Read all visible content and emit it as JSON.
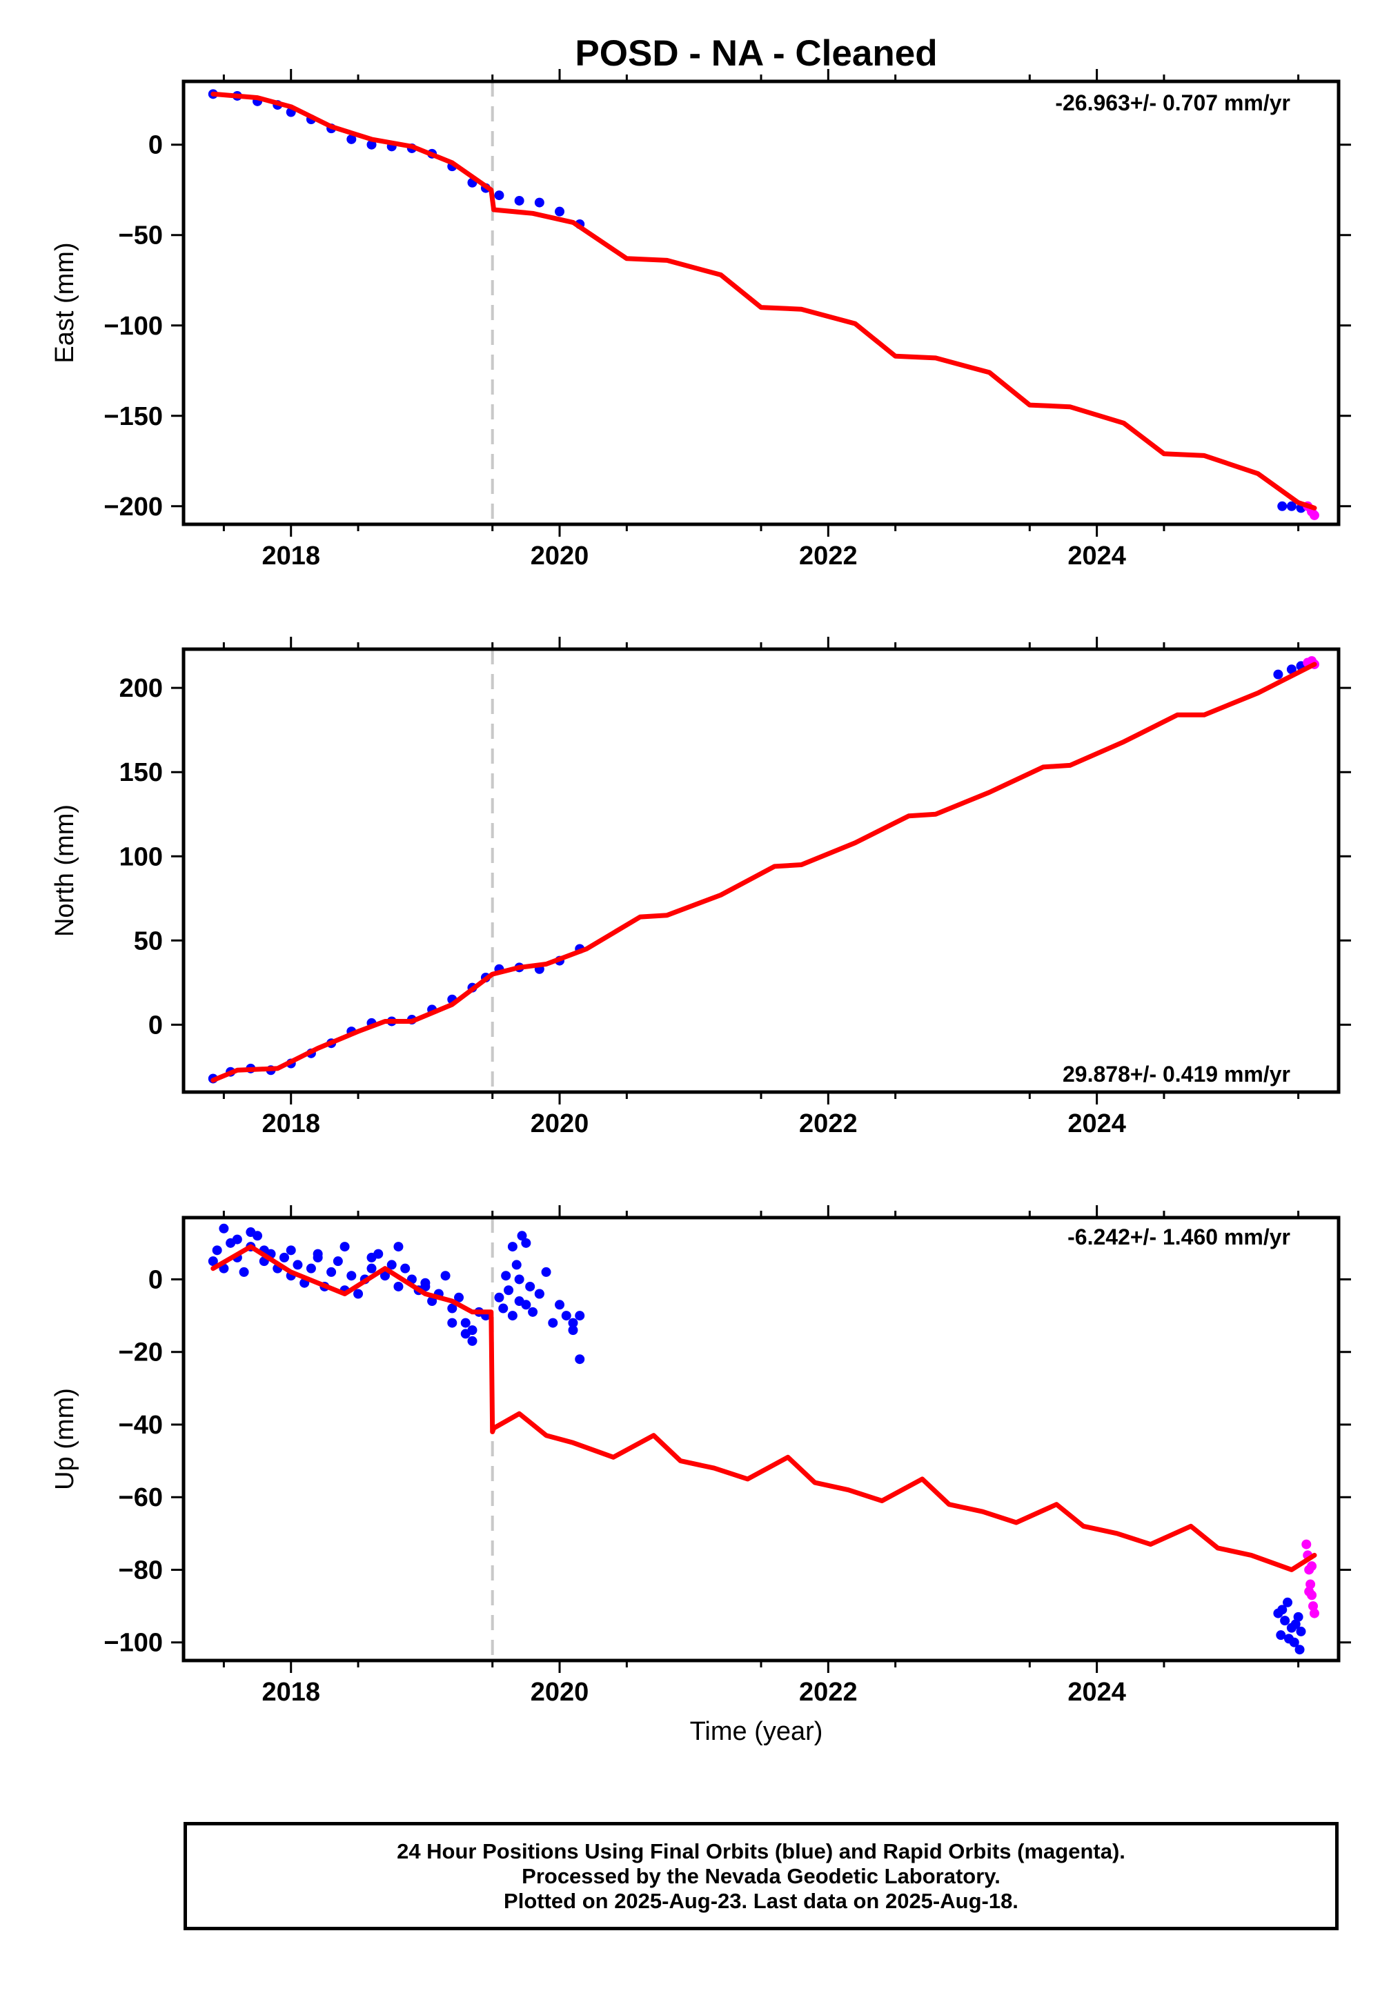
{
  "title": "POSD  - NA - Cleaned",
  "xlabel": "Time (year)",
  "x_tick_labels": [
    "2018",
    "2020",
    "2022",
    "2024"
  ],
  "colors": {
    "final_orbits": "#0000ff",
    "rapid_orbits": "#ff00ff",
    "model": "#ff0000",
    "equipment_change": "#c8c8c8"
  },
  "footer": {
    "line1": "24 Hour Positions Using Final Orbits (blue) and Rapid Orbits (magenta).",
    "line2": "Processed by the Nevada Geodetic Laboratory.",
    "line3": "Plotted on 2025-Aug-23. Last data on 2025-Aug-18."
  },
  "chart_data": [
    {
      "type": "scatter",
      "ylabel": "East (mm)",
      "rate_label": "-26.963+/- 0.707 mm/yr",
      "xlim": [
        2017.2,
        2025.8
      ],
      "ylim": [
        -210,
        35
      ],
      "y_ticks": [
        0,
        -50,
        -100,
        -150,
        -200
      ],
      "y_tick_labels": [
        "0",
        "−50",
        "−100",
        "−150",
        "−200"
      ],
      "offset_year": 2019.5,
      "model": {
        "x": [
          2017.42,
          2017.75,
          2018.0,
          2018.3,
          2018.6,
          2018.9,
          2019.2,
          2019.49,
          2019.51,
          2019.8,
          2020.1,
          2020.5,
          2020.8,
          2021.2,
          2021.5,
          2021.8,
          2022.2,
          2022.5,
          2022.8,
          2023.2,
          2023.5,
          2023.8,
          2024.2,
          2024.5,
          2024.8,
          2025.2,
          2025.5,
          2025.62
        ],
        "y": [
          28,
          26,
          21,
          10,
          3,
          -1,
          -10,
          -25,
          -36,
          -38,
          -43,
          -63,
          -64,
          -72,
          -90,
          -91,
          -99,
          -117,
          -118,
          -126,
          -144,
          -145,
          -154,
          -171,
          -172,
          -182,
          -198,
          -201
        ]
      },
      "series": [
        {
          "name": "Final Orbits",
          "color": "#0000ff",
          "x": [
            2017.42,
            2017.6,
            2017.75,
            2017.9,
            2018.0,
            2018.15,
            2018.3,
            2018.45,
            2018.6,
            2018.75,
            2018.9,
            2019.05,
            2019.2,
            2019.35,
            2019.45,
            2019.55,
            2019.7,
            2019.85,
            2020.0,
            2020.15,
            2025.38,
            2025.45,
            2025.52
          ],
          "y": [
            28,
            27,
            24,
            22,
            18,
            14,
            9,
            3,
            0,
            -1,
            -2,
            -5,
            -12,
            -21,
            -24,
            -28,
            -31,
            -32,
            -37,
            -44,
            -200,
            -200,
            -201
          ]
        },
        {
          "name": "Rapid Orbits",
          "color": "#ff00ff",
          "x": [
            2025.57,
            2025.6,
            2025.62
          ],
          "y": [
            -200,
            -203,
            -205
          ]
        }
      ]
    },
    {
      "type": "scatter",
      "ylabel": "North (mm)",
      "rate_label": "29.878+/- 0.419 mm/yr",
      "xlim": [
        2017.2,
        2025.8
      ],
      "ylim": [
        -40,
        223
      ],
      "y_ticks": [
        0,
        50,
        100,
        150,
        200
      ],
      "y_tick_labels": [
        "0",
        "50",
        "100",
        "150",
        "200"
      ],
      "offset_year": 2019.5,
      "model": {
        "x": [
          2017.42,
          2017.6,
          2017.9,
          2018.2,
          2018.5,
          2018.7,
          2018.9,
          2019.2,
          2019.5,
          2019.7,
          2019.9,
          2020.2,
          2020.6,
          2020.8,
          2021.2,
          2021.6,
          2021.8,
          2022.2,
          2022.6,
          2022.8,
          2023.2,
          2023.6,
          2023.8,
          2024.2,
          2024.6,
          2024.8,
          2025.2,
          2025.62
        ],
        "y": [
          -33,
          -27,
          -26,
          -14,
          -4,
          2,
          2,
          12,
          30,
          34,
          36,
          45,
          64,
          65,
          77,
          94,
          95,
          108,
          124,
          125,
          138,
          153,
          154,
          168,
          184,
          184,
          197,
          214
        ]
      },
      "series": [
        {
          "name": "Final Orbits",
          "color": "#0000ff",
          "x": [
            2017.42,
            2017.55,
            2017.7,
            2017.85,
            2018.0,
            2018.15,
            2018.3,
            2018.45,
            2018.6,
            2018.75,
            2018.9,
            2019.05,
            2019.2,
            2019.35,
            2019.45,
            2019.55,
            2019.7,
            2019.85,
            2020.0,
            2020.15,
            2025.35,
            2025.45,
            2025.52
          ],
          "y": [
            -32,
            -28,
            -26,
            -27,
            -23,
            -17,
            -11,
            -4,
            1,
            2,
            3,
            9,
            15,
            22,
            28,
            33,
            34,
            33,
            38,
            45,
            208,
            211,
            213
          ]
        },
        {
          "name": "Rapid Orbits",
          "color": "#ff00ff",
          "x": [
            2025.57,
            2025.6,
            2025.62
          ],
          "y": [
            215,
            216,
            214
          ]
        }
      ]
    },
    {
      "type": "scatter",
      "ylabel": "Up (mm)",
      "rate_label": "-6.242+/- 1.460 mm/yr",
      "xlim": [
        2017.2,
        2025.8
      ],
      "ylim": [
        -105,
        17
      ],
      "y_ticks": [
        0,
        -20,
        -40,
        -60,
        -80,
        -100
      ],
      "y_tick_labels": [
        "0",
        "−20",
        "−40",
        "−60",
        "−80",
        "−100"
      ],
      "offset_year": 2019.5,
      "model": {
        "x": [
          2017.42,
          2017.7,
          2018.0,
          2018.2,
          2018.4,
          2018.7,
          2019.0,
          2019.2,
          2019.35,
          2019.49,
          2019.5,
          2019.51,
          2019.7,
          2019.9,
          2020.1,
          2020.4,
          2020.7,
          2020.9,
          2021.15,
          2021.4,
          2021.7,
          2021.9,
          2022.15,
          2022.4,
          2022.7,
          2022.9,
          2023.15,
          2023.4,
          2023.7,
          2023.9,
          2024.15,
          2024.4,
          2024.7,
          2024.9,
          2025.15,
          2025.45,
          2025.62
        ],
        "y": [
          3,
          9,
          2,
          -1,
          -4,
          3,
          -4,
          -6,
          -9,
          -9,
          -42,
          -41,
          -37,
          -43,
          -45,
          -49,
          -43,
          -50,
          -52,
          -55,
          -49,
          -56,
          -58,
          -61,
          -55,
          -62,
          -64,
          -67,
          -62,
          -68,
          -70,
          -73,
          -68,
          -74,
          -76,
          -80,
          -76
        ]
      },
      "series": [
        {
          "name": "Final Orbits",
          "color": "#0000ff",
          "x": [
            2017.42,
            2017.45,
            2017.5,
            2017.55,
            2017.6,
            2017.65,
            2017.7,
            2017.75,
            2017.8,
            2017.85,
            2017.9,
            2017.95,
            2018.0,
            2018.05,
            2018.1,
            2018.15,
            2018.2,
            2018.25,
            2018.3,
            2018.35,
            2018.4,
            2018.45,
            2018.5,
            2018.55,
            2018.6,
            2018.65,
            2018.7,
            2018.75,
            2018.8,
            2018.85,
            2018.9,
            2018.95,
            2019.0,
            2019.05,
            2019.1,
            2019.15,
            2019.2,
            2019.25,
            2019.3,
            2019.35,
            2019.4,
            2019.45,
            2019.55,
            2019.58,
            2019.6,
            2019.62,
            2019.65,
            2019.68,
            2019.7,
            2019.72,
            2019.75,
            2019.78,
            2019.8,
            2019.85,
            2019.9,
            2019.95,
            2020.0,
            2020.05,
            2020.1,
            2020.15,
            2017.5,
            2017.6,
            2017.7,
            2017.8,
            2018.0,
            2018.2,
            2018.4,
            2018.6,
            2018.8,
            2019.0,
            2019.2,
            2019.3,
            2019.35,
            2019.65,
            2019.7,
            2019.75,
            2019.85,
            2020.1,
            2020.15,
            2025.35,
            2025.37,
            2025.4,
            2025.42,
            2025.45,
            2025.47,
            2025.5,
            2025.52,
            2025.38,
            2025.43,
            2025.48,
            2025.51
          ],
          "y": [
            5,
            8,
            3,
            10,
            6,
            2,
            9,
            12,
            5,
            7,
            3,
            6,
            1,
            4,
            -1,
            3,
            6,
            -2,
            2,
            5,
            -3,
            1,
            -4,
            0,
            3,
            7,
            1,
            4,
            -2,
            3,
            0,
            -3,
            -2,
            -6,
            -4,
            1,
            -8,
            -5,
            -12,
            -14,
            -9,
            -10,
            -5,
            -8,
            1,
            -3,
            -10,
            4,
            -6,
            12,
            -7,
            -2,
            -9,
            -4,
            2,
            -12,
            -7,
            -10,
            -14,
            -22,
            14,
            11,
            13,
            8,
            8,
            7,
            9,
            6,
            9,
            -1,
            -12,
            -15,
            -17,
            9,
            0,
            10,
            -4,
            -12,
            -10,
            -92,
            -98,
            -94,
            -89,
            -96,
            -100,
            -93,
            -97,
            -91,
            -99,
            -95,
            -102
          ]
        },
        {
          "name": "Rapid Orbits",
          "color": "#ff00ff",
          "x": [
            2025.56,
            2025.57,
            2025.58,
            2025.59,
            2025.6,
            2025.61,
            2025.62,
            2025.58,
            2025.6
          ],
          "y": [
            -73,
            -76,
            -80,
            -84,
            -87,
            -90,
            -92,
            -86,
            -79
          ]
        }
      ]
    }
  ]
}
